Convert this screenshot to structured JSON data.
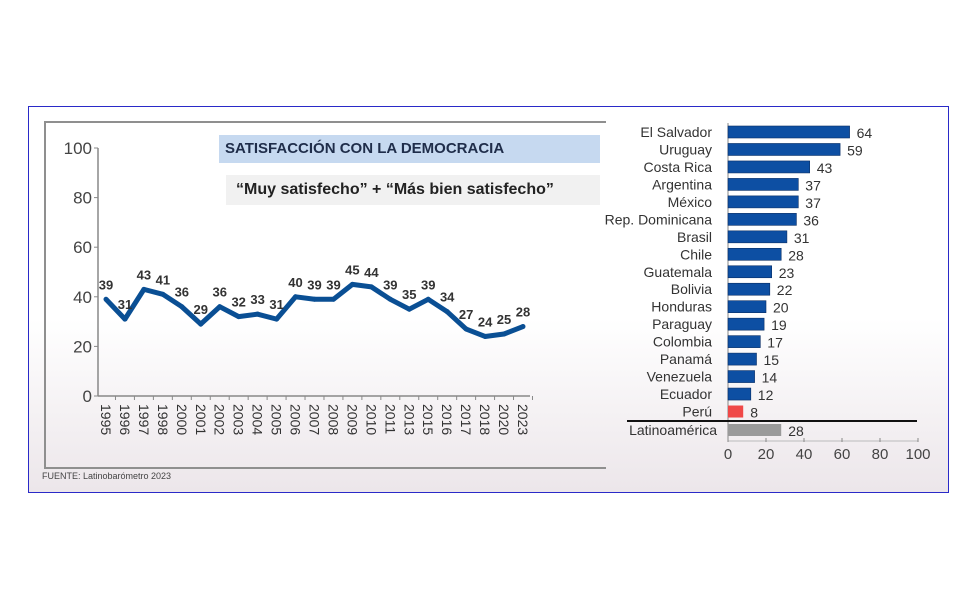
{
  "chart_data": [
    {
      "type": "line",
      "title": "SATISFACCIÓN CON LA DEMOCRACIA",
      "subtitle": "“Muy satisfecho” + “Más bien satisfecho”",
      "categories": [
        "1995",
        "1996",
        "1997",
        "1998",
        "2000",
        "2001",
        "2002",
        "2003",
        "2004",
        "2005",
        "2006",
        "2007",
        "2008",
        "2009",
        "2010",
        "2011",
        "2013",
        "2015",
        "2016",
        "2017",
        "2018",
        "2020",
        "2023"
      ],
      "values": [
        39,
        31,
        43,
        41,
        36,
        29,
        36,
        32,
        33,
        31,
        40,
        39,
        39,
        45,
        44,
        39,
        35,
        39,
        34,
        27,
        24,
        25,
        28
      ],
      "ylim": [
        0,
        100
      ],
      "yticks": [
        0,
        20,
        40,
        60,
        80,
        100
      ],
      "color": "#0a4f94",
      "grid": false
    },
    {
      "type": "bar",
      "orientation": "horizontal",
      "categories": [
        "El Salvador",
        "Uruguay",
        "Costa Rica",
        "Argentina",
        "México",
        "Rep. Dominicana",
        "Brasil",
        "Chile",
        "Guatemala",
        "Bolivia",
        "Honduras",
        "Paraguay",
        "Colombia",
        "Panamá",
        "Venezuela",
        "Ecuador",
        "Perú"
      ],
      "values": [
        64,
        59,
        43,
        37,
        37,
        36,
        31,
        28,
        23,
        22,
        20,
        19,
        17,
        15,
        14,
        12,
        8
      ],
      "highlight": {
        "category": "Perú",
        "color": "#f04848"
      },
      "total": {
        "category": "Latinoamérica",
        "value": 28,
        "color": "#9a9a9a"
      },
      "color": "#0d4fa3",
      "xlim": [
        0,
        100
      ],
      "xticks": [
        0,
        20,
        40,
        60,
        80,
        100
      ]
    }
  ],
  "source": "FUENTE: Latinobarómetro 2023"
}
